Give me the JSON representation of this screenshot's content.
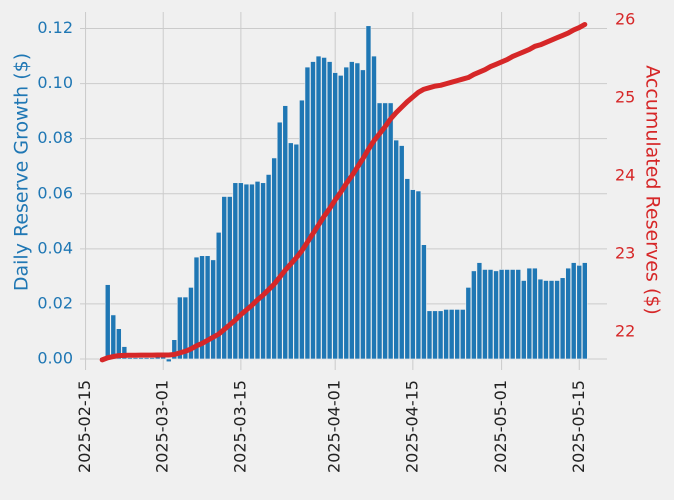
{
  "chart_data": {
    "type": "bar-line",
    "x_label": null,
    "y_label": "Daily Reserve Growth ($)",
    "y2_label": "Accumulated Reserves ($)",
    "x": [
      "2025-02-18",
      "2025-02-19",
      "2025-02-20",
      "2025-02-21",
      "2025-02-22",
      "2025-02-23",
      "2025-02-24",
      "2025-02-25",
      "2025-02-26",
      "2025-02-27",
      "2025-02-28",
      "2025-03-01",
      "2025-03-02",
      "2025-03-03",
      "2025-03-04",
      "2025-03-05",
      "2025-03-06",
      "2025-03-07",
      "2025-03-08",
      "2025-03-09",
      "2025-03-10",
      "2025-03-11",
      "2025-03-12",
      "2025-03-13",
      "2025-03-14",
      "2025-03-15",
      "2025-03-16",
      "2025-03-17",
      "2025-03-18",
      "2025-03-19",
      "2025-03-20",
      "2025-03-21",
      "2025-03-22",
      "2025-03-23",
      "2025-03-24",
      "2025-03-25",
      "2025-03-26",
      "2025-03-27",
      "2025-03-28",
      "2025-03-29",
      "2025-03-30",
      "2025-03-31",
      "2025-04-01",
      "2025-04-02",
      "2025-04-03",
      "2025-04-04",
      "2025-04-05",
      "2025-04-06",
      "2025-04-07",
      "2025-04-08",
      "2025-04-09",
      "2025-04-10",
      "2025-04-11",
      "2025-04-12",
      "2025-04-13",
      "2025-04-14",
      "2025-04-15",
      "2025-04-16",
      "2025-04-17",
      "2025-04-18",
      "2025-04-19",
      "2025-04-20",
      "2025-04-21",
      "2025-04-22",
      "2025-04-23",
      "2025-04-24",
      "2025-04-25",
      "2025-04-26",
      "2025-04-27",
      "2025-04-28",
      "2025-04-29",
      "2025-04-30",
      "2025-05-01",
      "2025-05-02",
      "2025-05-03",
      "2025-05-04",
      "2025-05-05",
      "2025-05-06",
      "2025-05-07",
      "2025-05-08",
      "2025-05-09",
      "2025-05-10",
      "2025-05-11",
      "2025-05-12",
      "2025-05-13",
      "2025-05-14",
      "2025-05-15",
      "2025-05-16"
    ],
    "series": [
      {
        "name": "Daily Reserve Growth",
        "kind": "bar",
        "color": "#1f77b4",
        "values": [
          0.0005,
          0.027,
          0.016,
          0.011,
          0.0045,
          0.0005,
          0.0005,
          0.0005,
          0.0005,
          0.0005,
          0.0015,
          0.0015,
          -0.001,
          0.007,
          0.0225,
          0.0225,
          0.026,
          0.037,
          0.0375,
          0.0375,
          0.036,
          0.046,
          0.059,
          0.059,
          0.064,
          0.064,
          0.0635,
          0.0635,
          0.0645,
          0.064,
          0.067,
          0.073,
          0.086,
          0.092,
          0.0785,
          0.078,
          0.094,
          0.106,
          0.108,
          0.11,
          0.1095,
          0.108,
          0.104,
          0.103,
          0.106,
          0.108,
          0.1075,
          0.105,
          0.121,
          0.11,
          0.093,
          0.093,
          0.093,
          0.0795,
          0.0775,
          0.0655,
          0.0615,
          0.061,
          0.0415,
          0.0175,
          0.0175,
          0.0175,
          0.018,
          0.018,
          0.018,
          0.018,
          0.026,
          0.032,
          0.035,
          0.0325,
          0.0325,
          0.032,
          0.0325,
          0.0325,
          0.0325,
          0.0325,
          0.0285,
          0.033,
          0.033,
          0.029,
          0.0285,
          0.0285,
          0.0285,
          0.0295,
          0.033,
          0.035,
          0.034,
          0.035
        ]
      },
      {
        "name": "Accumulated Reserves",
        "kind": "line",
        "axis": "y2",
        "color": "#d62728",
        "values": [
          21.64,
          21.667,
          21.683,
          21.694,
          21.698,
          21.699,
          21.699,
          21.7,
          21.7,
          21.7,
          21.702,
          21.703,
          21.702,
          21.709,
          21.73,
          21.75,
          21.78,
          21.82,
          21.85,
          21.89,
          21.93,
          21.97,
          22.03,
          22.09,
          22.15,
          22.22,
          22.28,
          22.34,
          22.41,
          22.47,
          22.54,
          22.61,
          22.7,
          22.79,
          22.87,
          22.95,
          23.04,
          23.15,
          23.26,
          23.37,
          23.48,
          23.58,
          23.69,
          23.79,
          23.9,
          24.0,
          24.11,
          24.22,
          24.34,
          24.45,
          24.54,
          24.63,
          24.73,
          24.81,
          24.88,
          24.95,
          25.01,
          25.07,
          25.11,
          25.13,
          25.15,
          25.16,
          25.18,
          25.2,
          25.22,
          25.24,
          25.26,
          25.3,
          25.33,
          25.36,
          25.4,
          25.43,
          25.46,
          25.49,
          25.53,
          25.56,
          25.59,
          25.62,
          25.66,
          25.68,
          25.71,
          25.74,
          25.77,
          25.8,
          25.83,
          25.87,
          25.9,
          25.94
        ]
      }
    ],
    "xlim": [
      "2025-02-14",
      "2025-05-20"
    ],
    "xticks": [
      "2025-02-15",
      "2025-03-01",
      "2025-03-15",
      "2025-04-01",
      "2025-04-15",
      "2025-05-01",
      "2025-05-15"
    ],
    "ylim": [
      -0.004,
      0.126
    ],
    "yticks": [
      {
        "value": 0,
        "label": "0.00"
      },
      {
        "value": 0.02,
        "label": "0.02"
      },
      {
        "value": 0.04,
        "label": "0.04"
      },
      {
        "value": 0.06,
        "label": "0.06"
      },
      {
        "value": 0.08,
        "label": "0.08"
      },
      {
        "value": 0.1,
        "label": "0.10"
      },
      {
        "value": 0.12,
        "label": "0.12"
      }
    ],
    "y2lim": [
      21.51,
      26.1
    ],
    "y2ticks": [
      22,
      23,
      24,
      25,
      26
    ],
    "grid": true,
    "y_label_color": "#1f77b4",
    "y2_label_color": "#d62728"
  }
}
